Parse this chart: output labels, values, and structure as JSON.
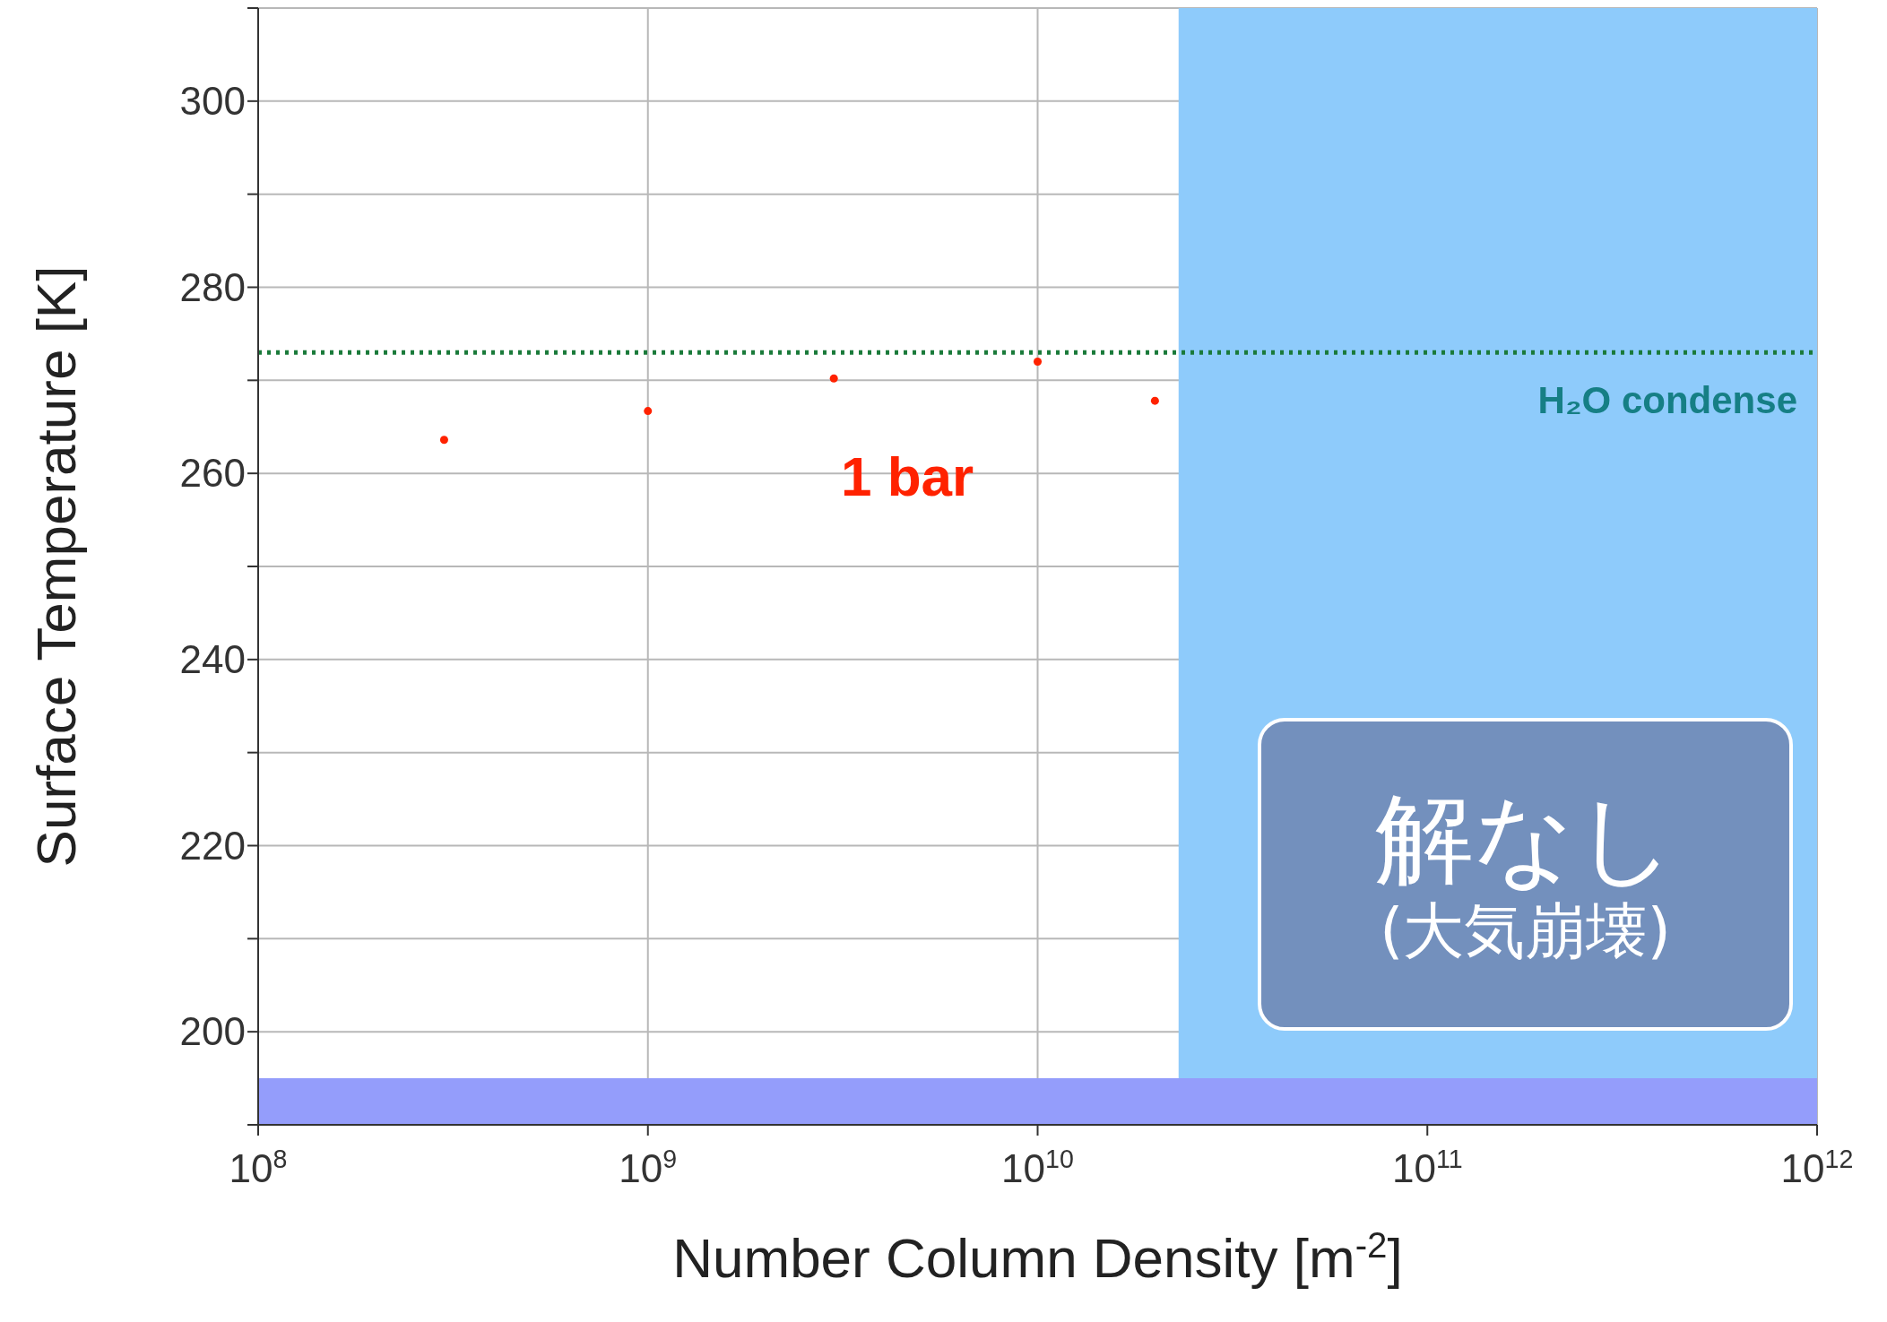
{
  "chart_data": {
    "type": "scatter",
    "xlabel": "Number Column Density [m$^{-2}$]",
    "ylabel": "Surface Temperature [K]",
    "x": [
      300000000.0,
      1000000000.0,
      3000000000.0,
      10000000000.0,
      20000000000.0
    ],
    "series": [
      {
        "color": "#ff2200",
        "values": [
          263.6,
          266.7,
          270.2,
          272,
          267.8
        ]
      }
    ],
    "marker": "circle",
    "log": "x",
    "xlim": [
      100000000.0,
      1000000000000.0
    ],
    "xticks": [
      {
        "value": 100000000.0,
        "label": "10$^{8}$"
      },
      {
        "value": 1000000000.0,
        "label": "10$^{9}$"
      },
      {
        "value": 10000000000.0,
        "label": "10$^{10}$"
      },
      {
        "value": 100000000000.0,
        "label": "10$^{11}$"
      },
      {
        "value": 1000000000000.0,
        "label": "10$^{12}$"
      }
    ],
    "ylim": [
      190,
      310
    ],
    "yticks": [
      {
        "value": 190,
        "label": null
      },
      200,
      {
        "value": 210,
        "label": null
      },
      220,
      {
        "value": 230,
        "label": null
      },
      240,
      {
        "value": 250,
        "label": null
      },
      260,
      {
        "value": 270,
        "label": null
      },
      280,
      {
        "value": 290,
        "label": null
      },
      300,
      {
        "value": 310,
        "label": null
      }
    ],
    "grid": true,
    "ref_lines": [
      {
        "axis": "y",
        "value": 273,
        "label": "H₂O condense",
        "color": "#1a7a3a",
        "line_style": "dotted"
      }
    ],
    "bands": [
      {
        "axis": "x",
        "from": 23000000000.0,
        "to": 1000000000000.0,
        "color": "#8ecbfb"
      },
      {
        "axis": "y",
        "from": 190,
        "to": 195,
        "color": "#949dfb"
      }
    ],
    "annotations": [
      "1 bar",
      "解なし",
      "(大気崩壊)"
    ]
  }
}
